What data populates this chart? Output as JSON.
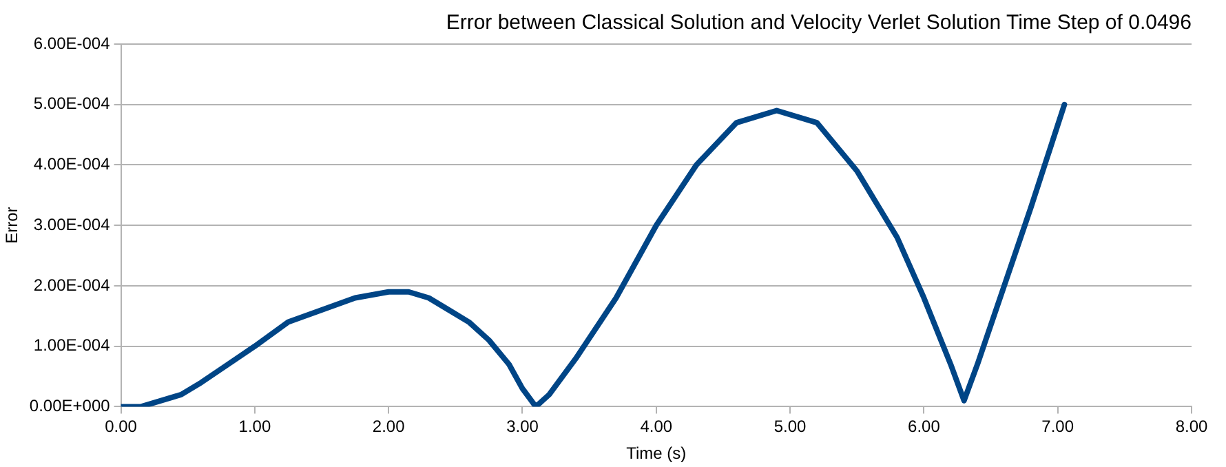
{
  "chart_data": {
    "type": "line",
    "title": "Error between Classical Solution and Velocity Verlet Solution Time Step of 0.0496",
    "xlabel": "Time (s)",
    "ylabel": "Error",
    "xlim": [
      0,
      8
    ],
    "xticks": [
      {
        "value": 0,
        "label": "0.00"
      },
      {
        "value": 1,
        "label": "1.00"
      },
      {
        "value": 2,
        "label": "2.00"
      },
      {
        "value": 3,
        "label": "3.00"
      },
      {
        "value": 4,
        "label": "4.00"
      },
      {
        "value": 5,
        "label": "5.00"
      },
      {
        "value": 6,
        "label": "6.00"
      },
      {
        "value": 7,
        "label": "7.00"
      },
      {
        "value": 8,
        "label": "8.00"
      }
    ],
    "ylim": [
      0,
      0.0006
    ],
    "yticks": [
      {
        "value": 0,
        "label": "0.00E+000"
      },
      {
        "value": 0.0001,
        "label": "1.00E-004"
      },
      {
        "value": 0.0002,
        "label": "2.00E-004"
      },
      {
        "value": 0.0003,
        "label": "3.00E-004"
      },
      {
        "value": 0.0004,
        "label": "4.00E-004"
      },
      {
        "value": 0.0005,
        "label": "5.00E-004"
      },
      {
        "value": 0.0006,
        "label": "6.00E-004"
      }
    ],
    "grid": "y",
    "legend": false,
    "marker": "none",
    "line_style": "solid",
    "series": [
      {
        "color": "#004586",
        "x": [
          0,
          0.15,
          0.3,
          0.45,
          0.6,
          0.8,
          1.0,
          1.25,
          1.5,
          1.75,
          2.0,
          2.15,
          2.3,
          2.45,
          2.6,
          2.75,
          2.9,
          3.0,
          3.1,
          3.2,
          3.4,
          3.7,
          4.0,
          4.3,
          4.6,
          4.9,
          5.2,
          5.5,
          5.8,
          6.0,
          6.2,
          6.3,
          6.4,
          6.6,
          6.8,
          7.05
        ],
        "values": [
          0,
          0,
          1e-05,
          2e-05,
          4e-05,
          7e-05,
          0.0001,
          0.00014,
          0.00016,
          0.00018,
          0.00019,
          0.00019,
          0.00018,
          0.00016,
          0.00014,
          0.00011,
          7e-05,
          3e-05,
          0,
          2e-05,
          8e-05,
          0.00018,
          0.0003,
          0.0004,
          0.00047,
          0.00049,
          0.00047,
          0.00039,
          0.00028,
          0.00018,
          7e-05,
          1e-05,
          7e-05,
          0.0002,
          0.00033,
          0.0005
        ]
      }
    ]
  }
}
